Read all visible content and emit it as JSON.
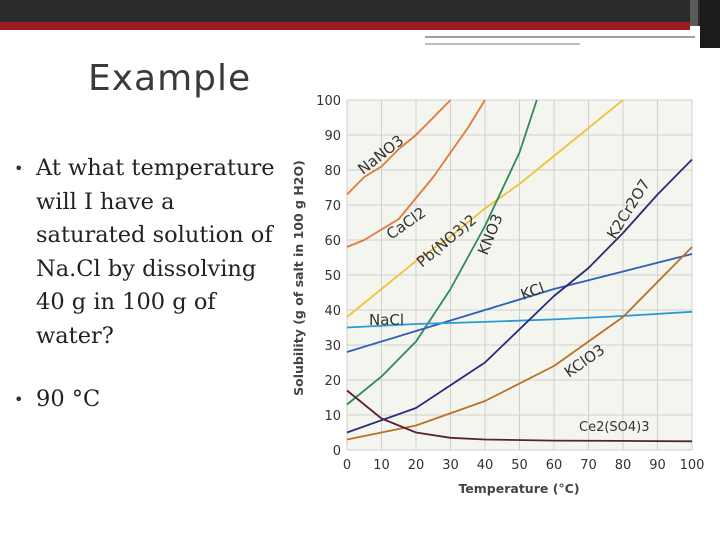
{
  "slide": {
    "title": "Example",
    "bullets": [
      "At what temperature will I have a saturated solution of Na.Cl by dissolving 40 g in 100 g of water?",
      "90 °C"
    ],
    "bullet_glyph": "•"
  },
  "chart_data": {
    "type": "line",
    "title": "",
    "xlabel": "Temperature (°C)",
    "ylabel": "Solubility (g of salt in 100 g H2O)",
    "xlim": [
      0,
      100
    ],
    "ylim": [
      0,
      100
    ],
    "xticks": [
      0,
      10,
      20,
      30,
      40,
      50,
      60,
      70,
      80,
      90,
      100
    ],
    "yticks": [
      0,
      10,
      20,
      30,
      40,
      50,
      60,
      70,
      80,
      90,
      100
    ],
    "grid": true,
    "series": [
      {
        "name": "NaNO3",
        "color": "#e07a3c",
        "x": [
          0,
          2,
          5,
          10,
          15,
          20,
          25,
          30
        ],
        "y": [
          73,
          75,
          78,
          81,
          86,
          90,
          95,
          100
        ]
      },
      {
        "name": "CaCl2",
        "color": "#e07a3c",
        "x": [
          0,
          5,
          10,
          15,
          20,
          25,
          30,
          35,
          40
        ],
        "y": [
          58,
          60,
          63,
          66,
          72,
          78,
          85,
          92,
          100
        ]
      },
      {
        "name": "Pb(NO3)2",
        "color": "#f0c23a",
        "x": [
          0,
          10,
          20,
          30,
          40,
          50,
          60,
          70,
          80
        ],
        "y": [
          38,
          46,
          54,
          61,
          69,
          76,
          84,
          92,
          100
        ]
      },
      {
        "name": "KNO3",
        "color": "#2e8b57",
        "x": [
          0,
          10,
          20,
          30,
          40,
          50,
          55
        ],
        "y": [
          13,
          21,
          31,
          46,
          64,
          85,
          100
        ]
      },
      {
        "name": "KCl",
        "color": "#2f5fb4",
        "x": [
          0,
          20,
          40,
          60,
          80,
          100
        ],
        "y": [
          28,
          34,
          40,
          46,
          51,
          56
        ]
      },
      {
        "name": "NaCl",
        "color": "#2a9ad6",
        "x": [
          0,
          20,
          40,
          60,
          80,
          100
        ],
        "y": [
          35,
          36,
          36.6,
          37.3,
          38.3,
          39.5
        ]
      },
      {
        "name": "K2Cr2O7",
        "color": "#2a2a7a",
        "x": [
          0,
          20,
          40,
          60,
          70,
          80,
          90,
          100
        ],
        "y": [
          5,
          12,
          25,
          44,
          52,
          62,
          73,
          83
        ]
      },
      {
        "name": "KClO3",
        "color": "#b8722a",
        "x": [
          0,
          20,
          40,
          60,
          80,
          100
        ],
        "y": [
          3,
          7,
          14,
          24,
          38,
          58
        ]
      },
      {
        "name": "Ce2(SO4)3",
        "color": "#5b1e3c",
        "x": [
          0,
          10,
          20,
          30,
          40,
          60,
          80,
          100
        ],
        "y": [
          17,
          9,
          5,
          3.5,
          3,
          2.7,
          2.6,
          2.5
        ]
      }
    ],
    "labels": [
      "NaNO3",
      "CaCl2",
      "Pb(NO3)2",
      "KNO3",
      "KCl",
      "NaCl",
      "K2Cr2O7",
      "KClO3",
      "Ce2(SO4)3"
    ]
  }
}
